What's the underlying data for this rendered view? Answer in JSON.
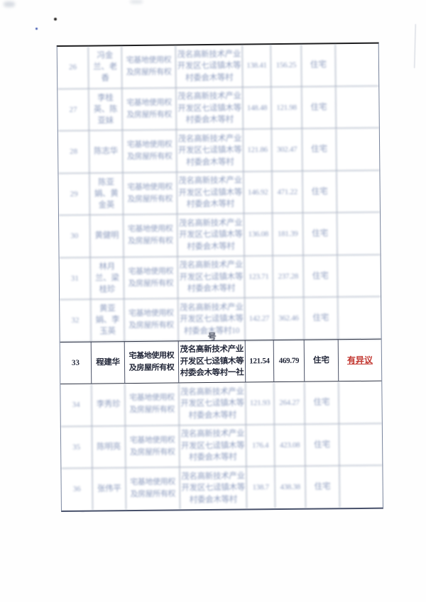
{
  "document": {
    "kind": "scanned land-rights registration table (continuation page, no headers visible)",
    "overflow_char": "号"
  },
  "colors": {
    "focus_text": "#23283a",
    "faint_text": "#7e8fb6",
    "objection_red": "#c2362f",
    "grid_faint": "#8894ac",
    "grid_dark": "#2b3040"
  },
  "table": {
    "rows": [
      {
        "no": "26",
        "name": "冯金兰、老香",
        "rights": "宅基地使用权及房屋所有权",
        "location": "茂名高新技术产业开发区七迳镇木等村委会木等村",
        "area": "138.41",
        "building": "156.25",
        "usage": "住宅",
        "objection": "",
        "focus": false
      },
      {
        "no": "27",
        "name": "李桂英、陈亚妹",
        "rights": "宅基地使用权及房屋所有权",
        "location": "茂名高新技术产业开发区七迳镇木等村委会木等村",
        "area": "148.48",
        "building": "121.98",
        "usage": "住宅",
        "objection": "",
        "focus": false
      },
      {
        "no": "28",
        "name": "陈志华",
        "rights": "宅基地使用权及房屋所有权",
        "location": "茂名高新技术产业开发区七迳镇木等村委会木等村",
        "area": "121.86",
        "building": "302.47",
        "usage": "住宅",
        "objection": "",
        "focus": false
      },
      {
        "no": "29",
        "name": "陈亚娟、黄金英",
        "rights": "宅基地使用权及房屋所有权",
        "location": "茂名高新技术产业开发区七迳镇木等村委会木等村",
        "area": "146.92",
        "building": "471.22",
        "usage": "住宅",
        "objection": "",
        "focus": false
      },
      {
        "no": "30",
        "name": "黄健明",
        "rights": "宅基地使用权及房屋所有权",
        "location": "茂名高新技术产业开发区七迳镇木等村委会木等村",
        "area": "136.08",
        "building": "181.39",
        "usage": "住宅",
        "objection": "",
        "focus": false
      },
      {
        "no": "31",
        "name": "林月兰、梁桂珍",
        "rights": "宅基地使用权及房屋所有权",
        "location": "茂名高新技术产业开发区七迳镇木等村委会木等村",
        "area": "123.71",
        "building": "237.28",
        "usage": "住宅",
        "objection": "",
        "focus": false
      },
      {
        "no": "32",
        "name": "黄亚娟、李玉英",
        "rights": "宅基地使用权及房屋所有权",
        "location": "茂名高新技术产业开发区七迳镇木等村委会木等村10",
        "area": "142.27",
        "building": "362.46",
        "usage": "住宅",
        "objection": "",
        "focus": false
      },
      {
        "no": "33",
        "name": "程建华",
        "rights": "宅基地使用权及房屋所有权",
        "location": "茂名高新技术产业开发区七迳镇木等村委会木等村一社",
        "area": "121.54",
        "building": "469.79",
        "usage": "住宅",
        "objection": "有异议",
        "focus": true
      },
      {
        "no": "34",
        "name": "李秀珍",
        "rights": "宅基地使用权及房屋所有权",
        "location": "茂名高新技术产业开发区七迳镇木等村委会木等村",
        "area": "121.93",
        "building": "264.27",
        "usage": "住宅",
        "objection": "",
        "focus": false
      },
      {
        "no": "35",
        "name": "陈明亮",
        "rights": "宅基地使用权及房屋所有权",
        "location": "茂名高新技术产业开发区七迳镇木等村委会木等村",
        "area": "176.4",
        "building": "423.08",
        "usage": "住宅",
        "objection": "",
        "focus": false
      },
      {
        "no": "36",
        "name": "张伟平",
        "rights": "宅基地使用权及房屋所有权",
        "location": "茂名高新技术产业开发区七迳镇木等村委会木等村",
        "area": "138.7",
        "building": "438.38",
        "usage": "住宅",
        "objection": "",
        "focus": false
      }
    ]
  }
}
